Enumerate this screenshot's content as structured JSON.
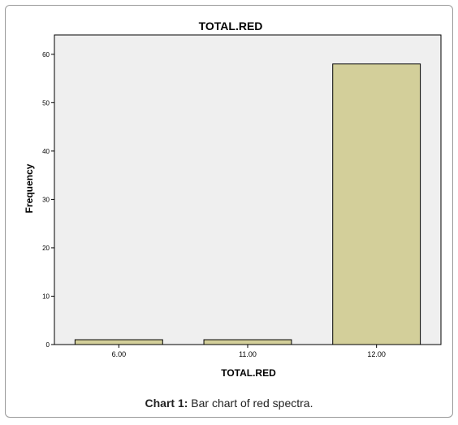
{
  "chart_data": {
    "type": "bar",
    "title": "TOTAL.RED",
    "xlabel": "TOTAL.RED",
    "ylabel": "Frequency",
    "categories": [
      "6.00",
      "11.00",
      "12.00"
    ],
    "values": [
      1,
      1,
      58
    ],
    "ylim": [
      0,
      64
    ],
    "yticks": [
      0,
      10,
      20,
      30,
      40,
      50,
      60
    ],
    "grid": false,
    "colors": {
      "plot_background": "#efefef",
      "bar_fill": "#d3cf9a",
      "bar_stroke": "#000000"
    }
  },
  "caption": {
    "label": "Chart 1:",
    "text": " Bar chart of red spectra."
  }
}
